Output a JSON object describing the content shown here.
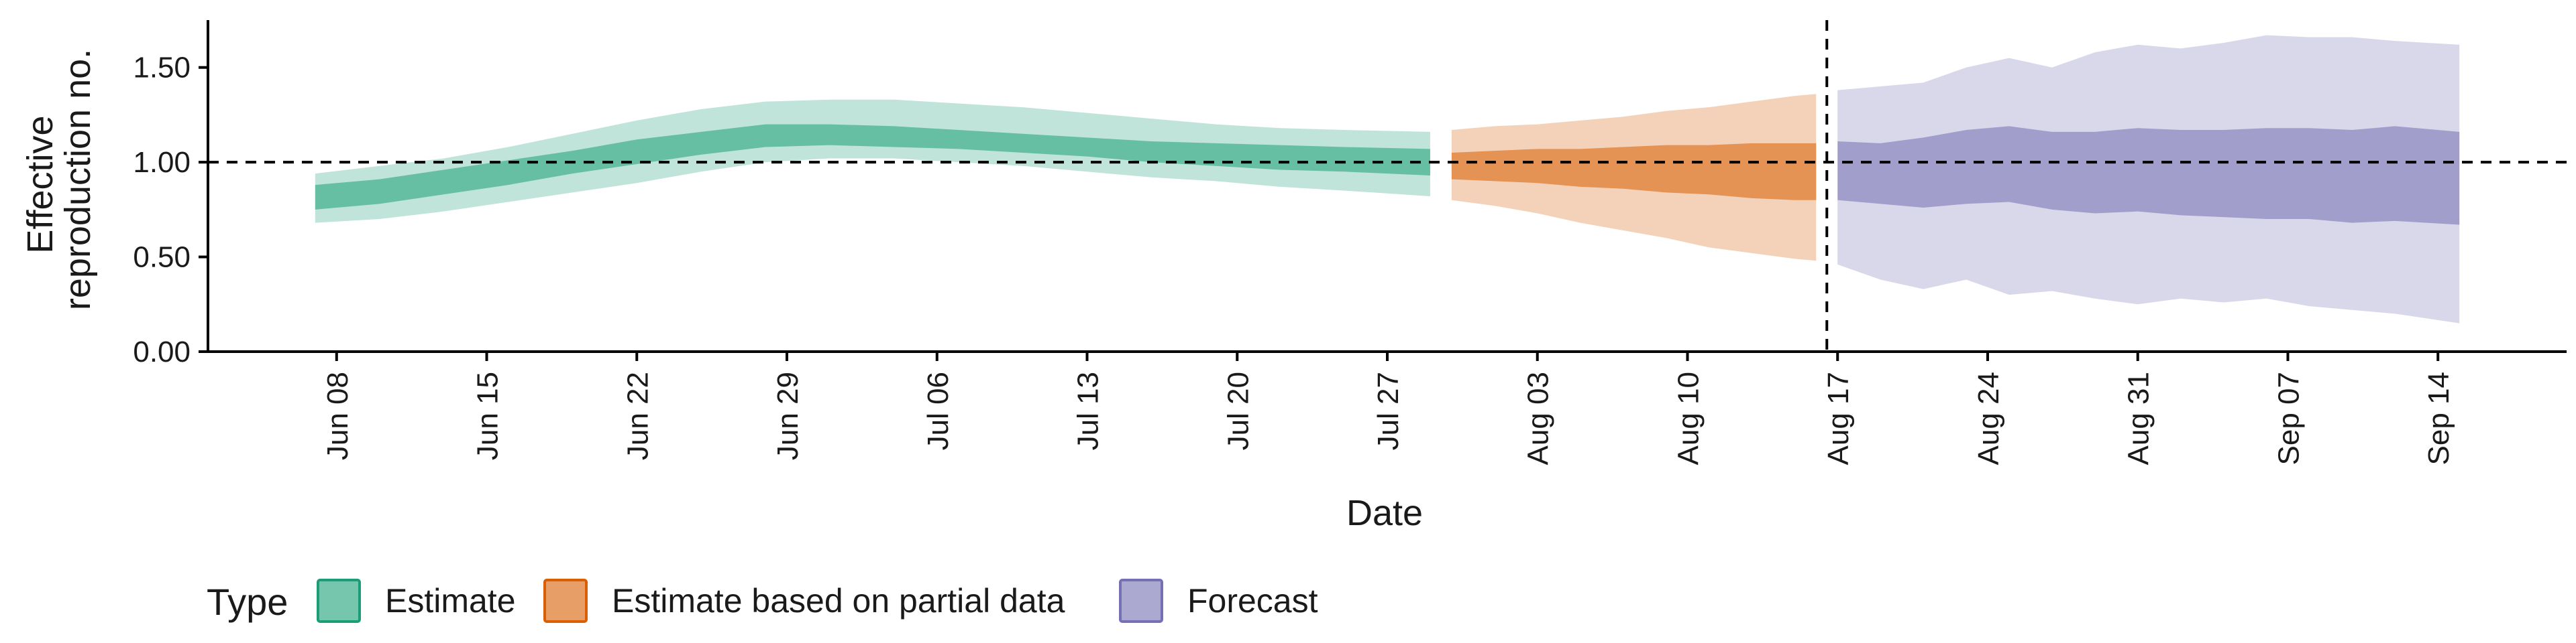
{
  "chart_data": {
    "type": "area",
    "xlabel": "Date",
    "ylabel": [
      "Effective",
      "reproduction no."
    ],
    "ylim": [
      0,
      1.75
    ],
    "yticks": [
      0.0,
      0.5,
      1.0,
      1.5
    ],
    "ytick_labels": [
      "0.00",
      "0.50",
      "1.00",
      "1.50"
    ],
    "xlim": [
      "2020-06-02",
      "2020-09-20"
    ],
    "xticks": [
      "2020-06-08",
      "2020-06-15",
      "2020-06-22",
      "2020-06-29",
      "2020-07-06",
      "2020-07-13",
      "2020-07-20",
      "2020-07-27",
      "2020-08-03",
      "2020-08-10",
      "2020-08-17",
      "2020-08-24",
      "2020-08-31",
      "2020-09-07",
      "2020-09-14"
    ],
    "xtick_labels": [
      "Jun 08",
      "Jun 15",
      "Jun 22",
      "Jun 29",
      "Jul 06",
      "Jul 13",
      "Jul 20",
      "Jul 27",
      "Aug 03",
      "Aug 10",
      "Aug 17",
      "Aug 24",
      "Aug 31",
      "Sep 07",
      "Sep 14"
    ],
    "reference_line_y": 1.0,
    "vertical_line_x": "2020-08-16",
    "grid": false,
    "legend": {
      "title": "Type",
      "position": "bottom-left",
      "entries": [
        "Estimate",
        "Estimate based on partial data",
        "Forecast"
      ]
    },
    "series": [
      {
        "name": "Estimate",
        "color": "#1b9e77",
        "x": [
          "2020-06-07",
          "2020-06-10",
          "2020-06-13",
          "2020-06-16",
          "2020-06-19",
          "2020-06-22",
          "2020-06-25",
          "2020-06-28",
          "2020-07-01",
          "2020-07-04",
          "2020-07-07",
          "2020-07-10",
          "2020-07-13",
          "2020-07-16",
          "2020-07-19",
          "2020-07-22",
          "2020-07-25",
          "2020-07-29"
        ],
        "lower90": [
          0.68,
          0.7,
          0.74,
          0.79,
          0.84,
          0.89,
          0.95,
          1.0,
          1.02,
          1.02,
          1.0,
          0.98,
          0.95,
          0.92,
          0.9,
          0.87,
          0.85,
          0.82
        ],
        "upper90": [
          0.94,
          0.98,
          1.02,
          1.08,
          1.15,
          1.22,
          1.28,
          1.32,
          1.33,
          1.33,
          1.31,
          1.29,
          1.26,
          1.23,
          1.2,
          1.18,
          1.17,
          1.16
        ],
        "lower50": [
          0.75,
          0.78,
          0.83,
          0.88,
          0.94,
          0.99,
          1.04,
          1.08,
          1.09,
          1.08,
          1.07,
          1.05,
          1.03,
          1.0,
          0.98,
          0.96,
          0.95,
          0.93
        ],
        "upper50": [
          0.88,
          0.91,
          0.96,
          1.01,
          1.06,
          1.12,
          1.16,
          1.2,
          1.2,
          1.19,
          1.17,
          1.15,
          1.13,
          1.11,
          1.1,
          1.09,
          1.08,
          1.07
        ]
      },
      {
        "name": "Estimate based on partial data",
        "color": "#d95f02",
        "x": [
          "2020-07-30",
          "2020-08-01",
          "2020-08-03",
          "2020-08-05",
          "2020-08-07",
          "2020-08-09",
          "2020-08-11",
          "2020-08-13",
          "2020-08-15",
          "2020-08-16"
        ],
        "lower90": [
          0.8,
          0.77,
          0.73,
          0.68,
          0.64,
          0.6,
          0.55,
          0.52,
          0.49,
          0.48
        ],
        "upper90": [
          1.17,
          1.19,
          1.2,
          1.22,
          1.24,
          1.27,
          1.29,
          1.32,
          1.35,
          1.36
        ],
        "lower50": [
          0.91,
          0.9,
          0.89,
          0.87,
          0.86,
          0.84,
          0.83,
          0.81,
          0.8,
          0.8
        ],
        "upper50": [
          1.05,
          1.06,
          1.07,
          1.07,
          1.08,
          1.09,
          1.09,
          1.1,
          1.1,
          1.1
        ]
      },
      {
        "name": "Forecast",
        "color": "#7570b3",
        "x": [
          "2020-08-17",
          "2020-08-19",
          "2020-08-21",
          "2020-08-23",
          "2020-08-25",
          "2020-08-27",
          "2020-08-29",
          "2020-08-31",
          "2020-09-02",
          "2020-09-04",
          "2020-09-06",
          "2020-09-08",
          "2020-09-10",
          "2020-09-12",
          "2020-09-15"
        ],
        "lower90": [
          0.46,
          0.38,
          0.33,
          0.38,
          0.3,
          0.32,
          0.28,
          0.25,
          0.28,
          0.26,
          0.28,
          0.24,
          0.22,
          0.2,
          0.15
        ],
        "upper90": [
          1.38,
          1.4,
          1.42,
          1.5,
          1.55,
          1.5,
          1.58,
          1.62,
          1.6,
          1.63,
          1.67,
          1.66,
          1.66,
          1.64,
          1.62
        ],
        "lower50": [
          0.8,
          0.78,
          0.76,
          0.78,
          0.79,
          0.75,
          0.73,
          0.74,
          0.72,
          0.71,
          0.7,
          0.7,
          0.68,
          0.69,
          0.67
        ],
        "upper50": [
          1.11,
          1.1,
          1.13,
          1.17,
          1.19,
          1.16,
          1.16,
          1.18,
          1.17,
          1.17,
          1.18,
          1.18,
          1.17,
          1.19,
          1.16
        ]
      }
    ]
  }
}
